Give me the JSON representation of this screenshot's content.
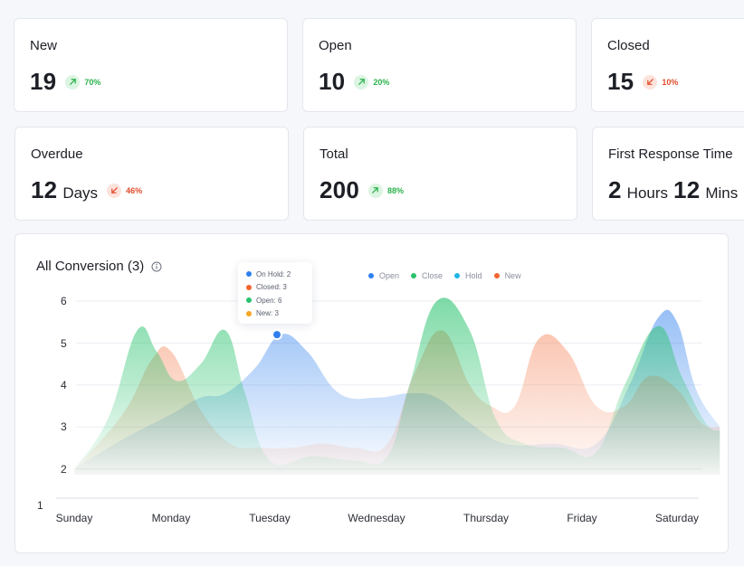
{
  "stats": [
    {
      "title": "New",
      "value": "19",
      "unit": "",
      "value2": "",
      "unit2": "",
      "delta": "70%",
      "trend": "up"
    },
    {
      "title": "Open",
      "value": "10",
      "unit": "",
      "value2": "",
      "unit2": "",
      "delta": "20%",
      "trend": "up"
    },
    {
      "title": "Closed",
      "value": "15",
      "unit": "",
      "value2": "",
      "unit2": "",
      "delta": "10%",
      "trend": "down"
    },
    {
      "title": "Overdue",
      "value": "12",
      "unit": "Days",
      "value2": "",
      "unit2": "",
      "delta": "46%",
      "trend": "down"
    },
    {
      "title": "Total",
      "value": "200",
      "unit": "",
      "value2": "",
      "unit2": "",
      "delta": "88%",
      "trend": "up"
    },
    {
      "title": "First Response Time",
      "value": "2",
      "unit": "Hours",
      "value2": "12",
      "unit2": "Mins",
      "delta": "",
      "trend": ""
    }
  ],
  "colors": {
    "open": "#2f80ed",
    "close": "#27c26c",
    "hold": "#1fb6e8",
    "new": "#f2652e",
    "tooltip_new": "#f5a623",
    "up": "#2bb24c",
    "down": "#e24b2b"
  },
  "chart": {
    "title": "All Conversion (3)",
    "info_icon": "info-icon",
    "legend": [
      {
        "label": "Open",
        "color": "#2f80ed"
      },
      {
        "label": "Close",
        "color": "#27c26c"
      },
      {
        "label": "Hold",
        "color": "#1fb6e8"
      },
      {
        "label": "New",
        "color": "#f2652e"
      }
    ],
    "tooltip": [
      {
        "label": "On Hold: 2",
        "color": "#2f80ed"
      },
      {
        "label": "Closed: 3",
        "color": "#f2652e"
      },
      {
        "label": "Open: 6",
        "color": "#27c26c"
      },
      {
        "label": "New: 3",
        "color": "#f5a623"
      }
    ]
  },
  "chart_data": {
    "type": "area",
    "x": [
      "Sunday",
      "Monday",
      "Tuesday",
      "Wednesday",
      "Thursday",
      "Friday",
      "Saturday"
    ],
    "y_ticks": [
      1,
      2,
      3,
      4,
      5,
      6
    ],
    "ylim": [
      1,
      6.5
    ],
    "grid": true,
    "legend_position": "top",
    "series": [
      {
        "name": "Open",
        "color": "#2f80ed",
        "x": [
          0,
          0.5,
          1,
          1.3,
          1.55,
          1.85,
          2.1,
          2.35,
          2.65,
          3.0,
          3.3,
          3.55,
          3.85,
          4.2,
          4.7,
          5.15,
          5.5,
          5.8,
          6.0,
          6.2,
          6.45
        ],
        "y": [
          2.0,
          2.7,
          3.3,
          3.7,
          3.8,
          4.4,
          5.2,
          4.8,
          3.8,
          3.7,
          3.8,
          3.7,
          3.1,
          2.6,
          2.6,
          2.6,
          4.0,
          5.6,
          5.5,
          3.9,
          3.0
        ]
      },
      {
        "name": "Close",
        "color": "#27c26c",
        "x": [
          0,
          0.35,
          0.65,
          0.85,
          1.05,
          1.3,
          1.55,
          1.75,
          2.0,
          2.4,
          2.8,
          3.1,
          3.3,
          3.55,
          3.85,
          4.1,
          4.4,
          4.8,
          5.15,
          5.45,
          5.8,
          6.05,
          6.3,
          6.45
        ],
        "y": [
          2.0,
          3.2,
          5.3,
          4.8,
          4.1,
          4.5,
          5.3,
          3.8,
          2.2,
          2.3,
          2.2,
          2.3,
          4.0,
          6.0,
          5.3,
          3.2,
          2.6,
          2.5,
          2.4,
          4.0,
          5.4,
          4.2,
          3.1,
          2.9
        ]
      },
      {
        "name": "New",
        "color": "#f2652e",
        "x": [
          0,
          0.5,
          0.8,
          1.0,
          1.3,
          1.6,
          1.9,
          2.2,
          2.5,
          2.8,
          3.1,
          3.35,
          3.6,
          3.85,
          4.05,
          4.3,
          4.55,
          4.85,
          5.15,
          5.45,
          5.7,
          6.0,
          6.25,
          6.45
        ],
        "y": [
          2.0,
          3.3,
          4.6,
          4.8,
          3.4,
          2.6,
          2.5,
          2.5,
          2.6,
          2.5,
          2.6,
          4.3,
          5.3,
          4.0,
          3.5,
          3.5,
          5.1,
          4.8,
          3.5,
          3.5,
          4.2,
          3.9,
          3.1,
          3.0
        ]
      }
    ],
    "highlighted_point": {
      "x": "Tuesday",
      "y": 5.2
    }
  }
}
